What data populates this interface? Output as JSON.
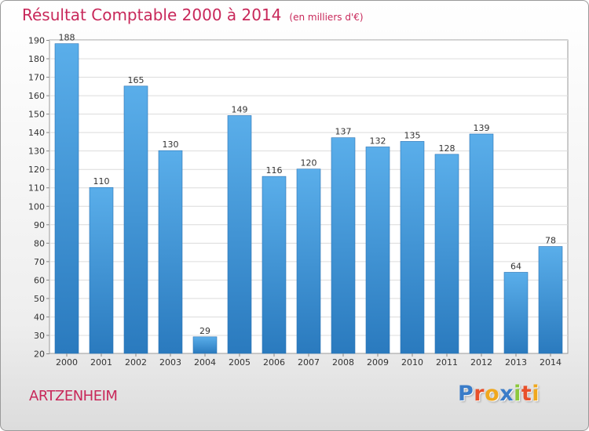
{
  "title": "Résultat Comptable 2000 à 2014",
  "unit_label": "(en milliers d'€)",
  "commune": "ARTZENHEIM",
  "logo": {
    "letters": [
      {
        "ch": "P",
        "color": "#3a7cc8"
      },
      {
        "ch": "r",
        "color": "#e8502a"
      },
      {
        "ch": "o",
        "color": "#f0a81e"
      },
      {
        "ch": "x",
        "color": "#3a7cc8"
      },
      {
        "ch": "i",
        "color": "#8cc83c"
      },
      {
        "ch": "t",
        "color": "#e8502a"
      },
      {
        "ch": "i",
        "color": "#f0a81e"
      }
    ]
  },
  "colors": {
    "title": "#c8285a",
    "bar_top": "#5aaeea",
    "bar_bottom": "#2a7abe"
  },
  "chart_data": {
    "type": "bar",
    "categories": [
      "2000",
      "2001",
      "2002",
      "2003",
      "2004",
      "2005",
      "2006",
      "2007",
      "2008",
      "2009",
      "2010",
      "2011",
      "2012",
      "2013",
      "2014"
    ],
    "values": [
      188,
      110,
      165,
      130,
      29,
      149,
      116,
      120,
      137,
      132,
      135,
      128,
      139,
      64,
      78
    ],
    "ylim": [
      20,
      190
    ],
    "yticks": [
      20,
      30,
      40,
      50,
      60,
      70,
      80,
      90,
      100,
      110,
      120,
      130,
      140,
      150,
      160,
      170,
      180,
      190
    ],
    "grid": true,
    "data_labels": true
  }
}
